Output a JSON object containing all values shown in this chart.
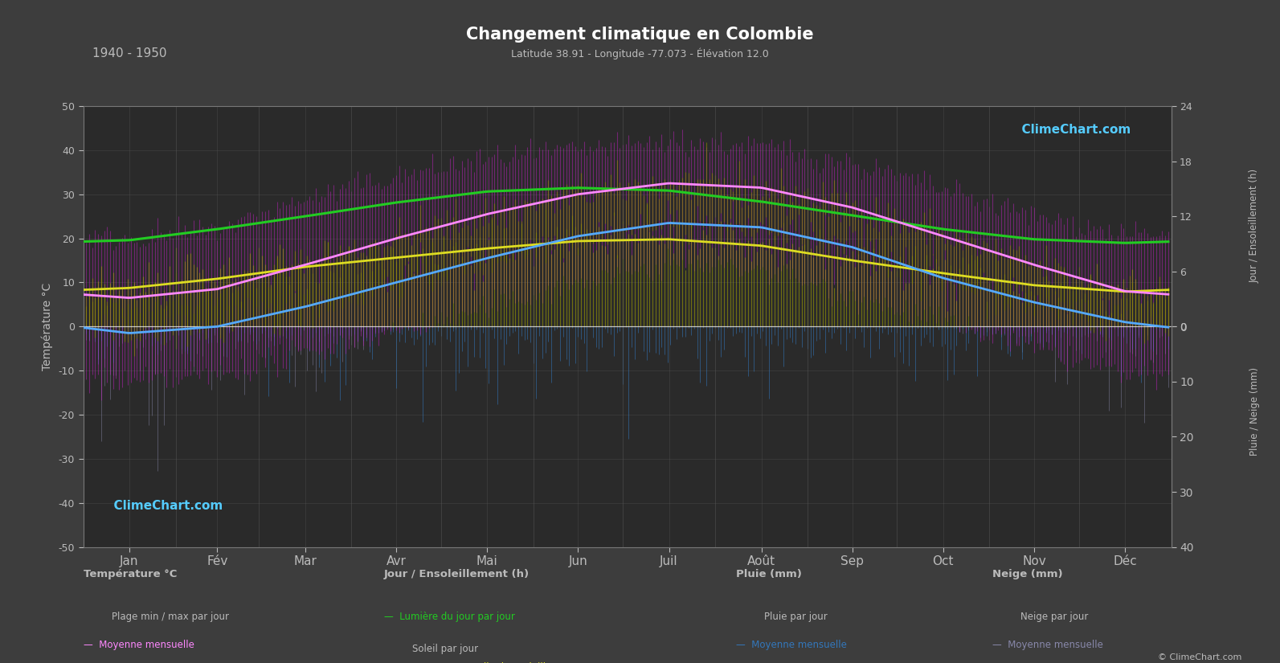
{
  "title": "Changement climatique en Colombie",
  "subtitle": "Latitude 38.91 - Longitude -77.073 - Élévation 12.0",
  "year_range": "1940 - 1950",
  "months": [
    "Jan",
    "Fév",
    "Mar",
    "Avr",
    "Mai",
    "Jun",
    "Juil",
    "Août",
    "Sep",
    "Oct",
    "Nov",
    "Déc"
  ],
  "temp_ylim": [
    -50,
    50
  ],
  "sun_ylim": [
    0,
    24
  ],
  "rain_ylim": [
    0,
    40
  ],
  "background_color": "#3d3d3d",
  "plot_bg_color": "#2a2a2a",
  "grid_color": "#555555",
  "text_color": "#bbbbbb",
  "temp_max_mean": [
    6.5,
    8.5,
    14.0,
    20.0,
    25.5,
    30.0,
    32.5,
    31.5,
    27.0,
    20.5,
    14.0,
    8.0
  ],
  "temp_min_mean": [
    -1.5,
    0.0,
    4.5,
    10.0,
    15.5,
    20.5,
    23.5,
    22.5,
    18.0,
    11.0,
    5.5,
    1.0
  ],
  "temp_abs_max": [
    20,
    22,
    29,
    34,
    38,
    40,
    42,
    41,
    37,
    31,
    25,
    21
  ],
  "temp_abs_min": [
    -13,
    -11,
    -6,
    -1,
    4,
    10,
    14,
    13,
    7,
    1,
    -5,
    -11
  ],
  "daylight_hours": [
    9.4,
    10.6,
    12.0,
    13.5,
    14.7,
    15.1,
    14.8,
    13.6,
    12.1,
    10.6,
    9.5,
    9.1
  ],
  "sunshine_hours": [
    4.2,
    5.2,
    6.5,
    7.5,
    8.5,
    9.3,
    9.5,
    8.8,
    7.2,
    5.8,
    4.5,
    3.8
  ],
  "rain_mm_daily_mean": [
    2.8,
    2.4,
    3.2,
    3.3,
    3.6,
    3.1,
    3.5,
    3.4,
    3.1,
    2.9,
    2.8,
    2.7
  ],
  "snow_mm_daily_mean": [
    6.0,
    4.5,
    2.5,
    0.3,
    0.0,
    0.0,
    0.0,
    0.0,
    0.0,
    0.2,
    1.8,
    5.0
  ],
  "rain_color": "#3377bb",
  "snow_color": "#8888aa",
  "daylight_line_color": "#22cc22",
  "sunshine_line_color": "#dddd22",
  "temp_max_line_color": "#ff88ff",
  "temp_min_line_color": "#55aaff",
  "website_text": "ClimeChart.com"
}
